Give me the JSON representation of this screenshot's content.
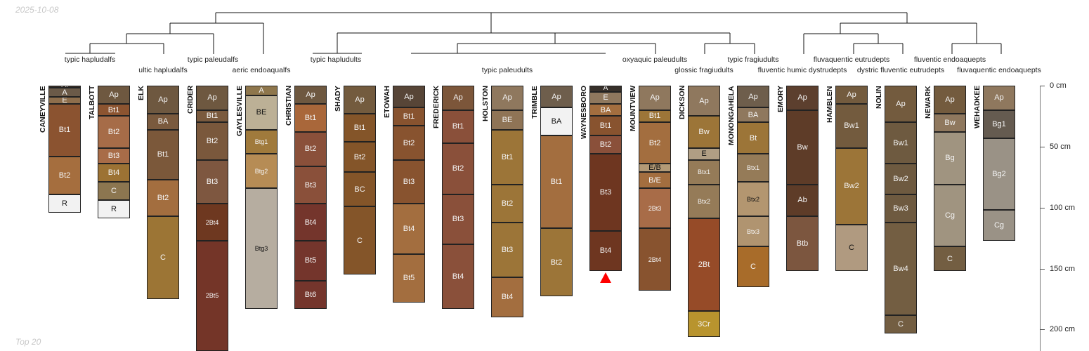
{
  "stamps": {
    "date": "2025-10-08",
    "caption": "Top 20"
  },
  "taxa_row1": [
    "typic hapludalfs",
    "typic paleudalfs",
    "typic hapludults",
    "oxyaquic paleudults",
    "typic fragiudults",
    "fluvaquentic eutrudepts",
    "fluventic endoaquepts"
  ],
  "taxa_row2": [
    "ultic hapludalfs",
    "aeric endoaqualfs",
    "typic paleudults",
    "glossic fragiudults",
    "fluventic humic dystrudepts",
    "dystric fluventic eutrudepts",
    "fluvaquentic endoaquepts"
  ],
  "chart_data": {
    "type": "soil-profile-sketch",
    "ylabel": "depth (cm)",
    "ylim": [
      0,
      220
    ],
    "yticks": [
      0,
      50,
      100,
      150,
      200
    ],
    "ytick_labels": [
      "0 cm",
      "50 cm",
      "100 cm",
      "150 cm",
      "200 cm"
    ],
    "profiles": [
      {
        "name": "CANEYVILLE",
        "horizons": [
          {
            "name": "Oi",
            "top": 0,
            "bottom": 2,
            "color": "#3b3028"
          },
          {
            "name": "A",
            "top": 2,
            "bottom": 9,
            "color": "#6b5a48"
          },
          {
            "name": "E",
            "top": 9,
            "bottom": 15,
            "color": "#8e6e4c"
          },
          {
            "name": "Bt1",
            "top": 15,
            "bottom": 58,
            "color": "#8b5330"
          },
          {
            "name": "Bt2",
            "top": 58,
            "bottom": 89,
            "color": "#a56e3e"
          },
          {
            "name": "R",
            "top": 89,
            "bottom": 104,
            "color": "#f2f2f2"
          }
        ]
      },
      {
        "name": "TALBOTT",
        "horizons": [
          {
            "name": "Ap",
            "top": 0,
            "bottom": 15,
            "color": "#6e5840"
          },
          {
            "name": "Bt1",
            "top": 15,
            "bottom": 25,
            "color": "#8c5430"
          },
          {
            "name": "Bt2",
            "top": 25,
            "bottom": 51,
            "color": "#a66c48"
          },
          {
            "name": "Bt3",
            "top": 51,
            "bottom": 64,
            "color": "#a86c48"
          },
          {
            "name": "Bt4",
            "top": 64,
            "bottom": 79,
            "color": "#9c7234"
          },
          {
            "name": "C",
            "top": 79,
            "bottom": 94,
            "color": "#8c7650"
          },
          {
            "name": "R",
            "top": 94,
            "bottom": 109,
            "color": "#f2f2f2"
          }
        ]
      },
      {
        "name": "ELK",
        "horizons": [
          {
            "name": "Ap",
            "top": 0,
            "bottom": 23,
            "color": "#6e5840"
          },
          {
            "name": "BA",
            "top": 23,
            "bottom": 36,
            "color": "#7a5a3e"
          },
          {
            "name": "Bt1",
            "top": 36,
            "bottom": 77,
            "color": "#7b583a"
          },
          {
            "name": "Bt2",
            "top": 77,
            "bottom": 107,
            "color": "#a36e3f"
          },
          {
            "name": "C",
            "top": 107,
            "bottom": 175,
            "color": "#9c7535"
          }
        ]
      },
      {
        "name": "CRIDER",
        "horizons": [
          {
            "name": "Ap",
            "top": 0,
            "bottom": 20,
            "color": "#6e5840"
          },
          {
            "name": "Bt1",
            "top": 20,
            "bottom": 30,
            "color": "#7a5a3e"
          },
          {
            "name": "Bt2",
            "top": 30,
            "bottom": 61,
            "color": "#7a583c"
          },
          {
            "name": "Bt3",
            "top": 61,
            "bottom": 97,
            "color": "#7e5740"
          },
          {
            "name": "2Bt4",
            "top": 97,
            "bottom": 127,
            "color": "#6e3820"
          },
          {
            "name": "2Bt5",
            "top": 127,
            "bottom": 220,
            "color": "#743528"
          }
        ]
      },
      {
        "name": "GAYLESVILLE",
        "horizons": [
          {
            "name": "A",
            "top": 0,
            "bottom": 8,
            "color": "#8e764c"
          },
          {
            "name": "BE",
            "top": 8,
            "bottom": 36,
            "color": "#bcb096"
          },
          {
            "name": "Btg1",
            "top": 36,
            "bottom": 56,
            "color": "#a07a3c"
          },
          {
            "name": "Btg2",
            "top": 56,
            "bottom": 84,
            "color": "#b68c55"
          },
          {
            "name": "Btg3",
            "top": 84,
            "bottom": 183,
            "color": "#b6ada0"
          }
        ]
      },
      {
        "name": "CHRISTIAN",
        "horizons": [
          {
            "name": "Ap",
            "top": 0,
            "bottom": 15,
            "color": "#6e5840"
          },
          {
            "name": "Bt1",
            "top": 15,
            "bottom": 38,
            "color": "#a9673a"
          },
          {
            "name": "Bt2",
            "top": 38,
            "bottom": 66,
            "color": "#8a503a"
          },
          {
            "name": "Bt3",
            "top": 66,
            "bottom": 97,
            "color": "#8a503a"
          },
          {
            "name": "Bt4",
            "top": 97,
            "bottom": 127,
            "color": "#74352c"
          },
          {
            "name": "Bt5",
            "top": 127,
            "bottom": 160,
            "color": "#74352c"
          },
          {
            "name": "Bt6",
            "top": 160,
            "bottom": 183,
            "color": "#74352c"
          }
        ]
      },
      {
        "name": "SHADY",
        "horizons": [
          {
            "name": "Ap",
            "top": 0,
            "bottom": 23,
            "color": "#735b3e"
          },
          {
            "name": "Bt1",
            "top": 23,
            "bottom": 46,
            "color": "#845529"
          },
          {
            "name": "Bt2",
            "top": 46,
            "bottom": 71,
            "color": "#845529"
          },
          {
            "name": "BC",
            "top": 71,
            "bottom": 99,
            "color": "#845529"
          },
          {
            "name": "C",
            "top": 99,
            "bottom": 155,
            "color": "#845529"
          }
        ]
      },
      {
        "name": "ETOWAH",
        "horizons": [
          {
            "name": "Ap",
            "top": 0,
            "bottom": 18,
            "color": "#574537"
          },
          {
            "name": "Bt1",
            "top": 18,
            "bottom": 33,
            "color": "#88532f"
          },
          {
            "name": "Bt2",
            "top": 33,
            "bottom": 61,
            "color": "#88532f"
          },
          {
            "name": "Bt3",
            "top": 61,
            "bottom": 97,
            "color": "#88532f"
          },
          {
            "name": "Bt4",
            "top": 97,
            "bottom": 138,
            "color": "#a36e3f"
          },
          {
            "name": "Bt5",
            "top": 138,
            "bottom": 178,
            "color": "#a36e3f"
          }
        ]
      },
      {
        "name": "FREDERICK",
        "horizons": [
          {
            "name": "Ap",
            "top": 0,
            "bottom": 20,
            "color": "#7c563a"
          },
          {
            "name": "Bt1",
            "top": 20,
            "bottom": 47,
            "color": "#8a503a"
          },
          {
            "name": "Bt2",
            "top": 47,
            "bottom": 89,
            "color": "#8a503a"
          },
          {
            "name": "Bt3",
            "top": 89,
            "bottom": 130,
            "color": "#8a503a"
          },
          {
            "name": "Bt4",
            "top": 130,
            "bottom": 183,
            "color": "#8a503a"
          }
        ]
      },
      {
        "name": "HOLSTON",
        "horizons": [
          {
            "name": "Ap",
            "top": 0,
            "bottom": 20,
            "color": "#8f785e"
          },
          {
            "name": "BE",
            "top": 20,
            "bottom": 36,
            "color": "#8f7456"
          },
          {
            "name": "Bt1",
            "top": 36,
            "bottom": 81,
            "color": "#9c7538"
          },
          {
            "name": "Bt2",
            "top": 81,
            "bottom": 112,
            "color": "#9c7538"
          },
          {
            "name": "Bt3",
            "top": 112,
            "bottom": 157,
            "color": "#9c7538"
          },
          {
            "name": "Bt4",
            "top": 157,
            "bottom": 190,
            "color": "#a36e3f"
          }
        ]
      },
      {
        "name": "TRIMBLE",
        "horizons": [
          {
            "name": "Ap",
            "top": 0,
            "bottom": 18,
            "color": "#6e5e4c"
          },
          {
            "name": "BA",
            "top": 18,
            "bottom": 41,
            "color": "#f2f2f2"
          },
          {
            "name": "Bt1",
            "top": 41,
            "bottom": 117,
            "color": "#a36e3f"
          },
          {
            "name": "Bt2",
            "top": 117,
            "bottom": 173,
            "color": "#9c7538"
          }
        ]
      },
      {
        "name": "WAYNESBORO",
        "marker": "red-triangle",
        "horizons": [
          {
            "name": "A",
            "top": 0,
            "bottom": 5,
            "color": "#37302a"
          },
          {
            "name": "E",
            "top": 5,
            "bottom": 15,
            "color": "#8f785e"
          },
          {
            "name": "BA",
            "top": 15,
            "bottom": 25,
            "color": "#a36e3f"
          },
          {
            "name": "Bt1",
            "top": 25,
            "bottom": 41,
            "color": "#88532f"
          },
          {
            "name": "Bt2",
            "top": 41,
            "bottom": 56,
            "color": "#8a503a"
          },
          {
            "name": "Bt3",
            "top": 56,
            "bottom": 119,
            "color": "#6e3620"
          },
          {
            "name": "Bt4",
            "top": 119,
            "bottom": 152,
            "color": "#6e3620"
          }
        ]
      },
      {
        "name": "MOUNTVIEW",
        "horizons": [
          {
            "name": "Ap",
            "top": 0,
            "bottom": 20,
            "color": "#8f785e"
          },
          {
            "name": "Bt1",
            "top": 20,
            "bottom": 30,
            "color": "#9c7538"
          },
          {
            "name": "Bt2",
            "top": 30,
            "bottom": 64,
            "color": "#a36e3f"
          },
          {
            "name": "E/B",
            "top": 64,
            "bottom": 71,
            "color": "#b39a76"
          },
          {
            "name": "B/E",
            "top": 71,
            "bottom": 84,
            "color": "#a36e3f"
          },
          {
            "name": "2Bt3",
            "top": 84,
            "bottom": 117,
            "color": "#a86c48"
          },
          {
            "name": "2Bt4",
            "top": 117,
            "bottom": 168,
            "color": "#88532f"
          }
        ]
      },
      {
        "name": "DICKSON",
        "horizons": [
          {
            "name": "Ap",
            "top": 0,
            "bottom": 25,
            "color": "#8f785e"
          },
          {
            "name": "Bw",
            "top": 25,
            "bottom": 51,
            "color": "#9c7538"
          },
          {
            "name": "E",
            "top": 51,
            "bottom": 61,
            "color": "#b09e84"
          },
          {
            "name": "Btx1",
            "top": 61,
            "bottom": 81,
            "color": "#957b58"
          },
          {
            "name": "Btx2",
            "top": 81,
            "bottom": 109,
            "color": "#957b58"
          },
          {
            "name": "2Bt",
            "top": 109,
            "bottom": 185,
            "color": "#964b28"
          },
          {
            "name": "3Cr",
            "top": 185,
            "bottom": 206,
            "color": "#b8942e"
          }
        ]
      },
      {
        "name": "MONONGAHELA",
        "horizons": [
          {
            "name": "Ap",
            "top": 0,
            "bottom": 18,
            "color": "#6e5e4c"
          },
          {
            "name": "BA",
            "top": 18,
            "bottom": 30,
            "color": "#8f785e"
          },
          {
            "name": "Bt",
            "top": 30,
            "bottom": 56,
            "color": "#9c7538"
          },
          {
            "name": "Btx1",
            "top": 56,
            "bottom": 79,
            "color": "#957b58"
          },
          {
            "name": "Btx2",
            "top": 79,
            "bottom": 107,
            "color": "#b39670"
          },
          {
            "name": "Btx3",
            "top": 107,
            "bottom": 132,
            "color": "#b09470"
          },
          {
            "name": "C",
            "top": 132,
            "bottom": 165,
            "color": "#a86c2a"
          }
        ]
      },
      {
        "name": "EMORY",
        "horizons": [
          {
            "name": "Ap",
            "top": 0,
            "bottom": 20,
            "color": "#5c3f2e"
          },
          {
            "name": "Bw",
            "top": 20,
            "bottom": 81,
            "color": "#5e3c28"
          },
          {
            "name": "Ab",
            "top": 81,
            "bottom": 107,
            "color": "#5e3c28"
          },
          {
            "name": "Btb",
            "top": 107,
            "bottom": 152,
            "color": "#7c563f"
          }
        ]
      },
      {
        "name": "HAMBLEN",
        "horizons": [
          {
            "name": "Ap",
            "top": 0,
            "bottom": 15,
            "color": "#735b3e"
          },
          {
            "name": "Bw1",
            "top": 15,
            "bottom": 51,
            "color": "#735b3e"
          },
          {
            "name": "Bw2",
            "top": 51,
            "bottom": 114,
            "color": "#9c7538"
          },
          {
            "name": "C",
            "top": 114,
            "bottom": 152,
            "color": "#b09a80"
          }
        ]
      },
      {
        "name": "NOLIN",
        "horizons": [
          {
            "name": "Ap",
            "top": 0,
            "bottom": 30,
            "color": "#735b3e"
          },
          {
            "name": "Bw1",
            "top": 30,
            "bottom": 64,
            "color": "#6e5a40"
          },
          {
            "name": "Bw2",
            "top": 64,
            "bottom": 89,
            "color": "#6e5a40"
          },
          {
            "name": "Bw3",
            "top": 89,
            "bottom": 112,
            "color": "#6e5a40"
          },
          {
            "name": "Bw4",
            "top": 112,
            "bottom": 188,
            "color": "#735e42"
          },
          {
            "name": "C",
            "top": 188,
            "bottom": 203,
            "color": "#735e42"
          }
        ]
      },
      {
        "name": "NEWARK",
        "horizons": [
          {
            "name": "Ap",
            "top": 0,
            "bottom": 23,
            "color": "#735b3e"
          },
          {
            "name": "Bw",
            "top": 23,
            "bottom": 38,
            "color": "#8f785e"
          },
          {
            "name": "Bg",
            "top": 38,
            "bottom": 81,
            "color": "#a09480"
          },
          {
            "name": "Cg",
            "top": 81,
            "bottom": 132,
            "color": "#a09480"
          },
          {
            "name": "C",
            "top": 132,
            "bottom": 152,
            "color": "#735e42"
          }
        ]
      },
      {
        "name": "WEHADKEE",
        "horizons": [
          {
            "name": "Ap",
            "top": 0,
            "bottom": 20,
            "color": "#8f785e"
          },
          {
            "name": "Bg1",
            "top": 20,
            "bottom": 43,
            "color": "#655b50"
          },
          {
            "name": "Bg2",
            "top": 43,
            "bottom": 102,
            "color": "#9a9286"
          },
          {
            "name": "Cg",
            "top": 102,
            "bottom": 127,
            "color": "#9a9286"
          }
        ]
      }
    ]
  }
}
